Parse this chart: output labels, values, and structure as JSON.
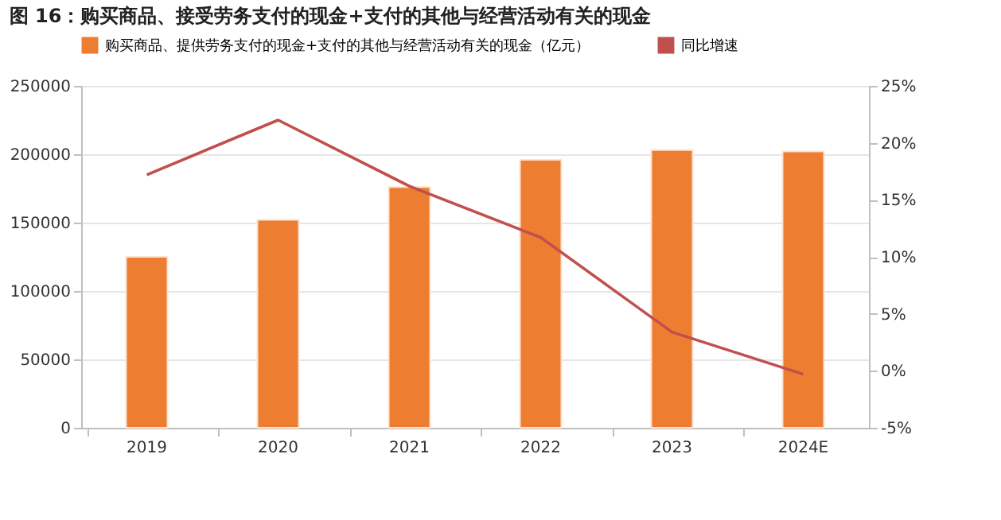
{
  "chart_data": {
    "type": "bar",
    "title": "图 16：购买商品、接受劳务支付的现金+支付的其他与经营活动有关的现金",
    "categories": [
      "2019",
      "2020",
      "2021",
      "2022",
      "2023",
      "2024E"
    ],
    "series": [
      {
        "name": "购买商品、提供劳务支付的现金+支付的其他与经营活动有关的现金（亿元）",
        "color": "#ed7d31",
        "values": [
          125000,
          152000,
          176000,
          196000,
          203000,
          202000
        ]
      },
      {
        "name": "同比增速",
        "type": "line",
        "axis": "y2",
        "color": "#c0504d",
        "values": [
          17.2,
          22.0,
          16.2,
          11.7,
          3.4,
          -0.3
        ]
      }
    ],
    "ylim": [
      0,
      250000
    ],
    "yticks": [
      0,
      50000,
      100000,
      150000,
      200000,
      250000
    ],
    "y2lim": [
      -5,
      25
    ],
    "y2ticks": [
      {
        "value": -5,
        "label": "-5%"
      },
      {
        "value": 0,
        "label": "0%"
      },
      {
        "value": 5,
        "label": "5%"
      },
      {
        "value": 10,
        "label": "10%"
      },
      {
        "value": 15,
        "label": "15%"
      },
      {
        "value": 20,
        "label": "20%"
      },
      {
        "value": 25,
        "label": "25%"
      }
    ],
    "grid": "y",
    "legend": "top"
  }
}
